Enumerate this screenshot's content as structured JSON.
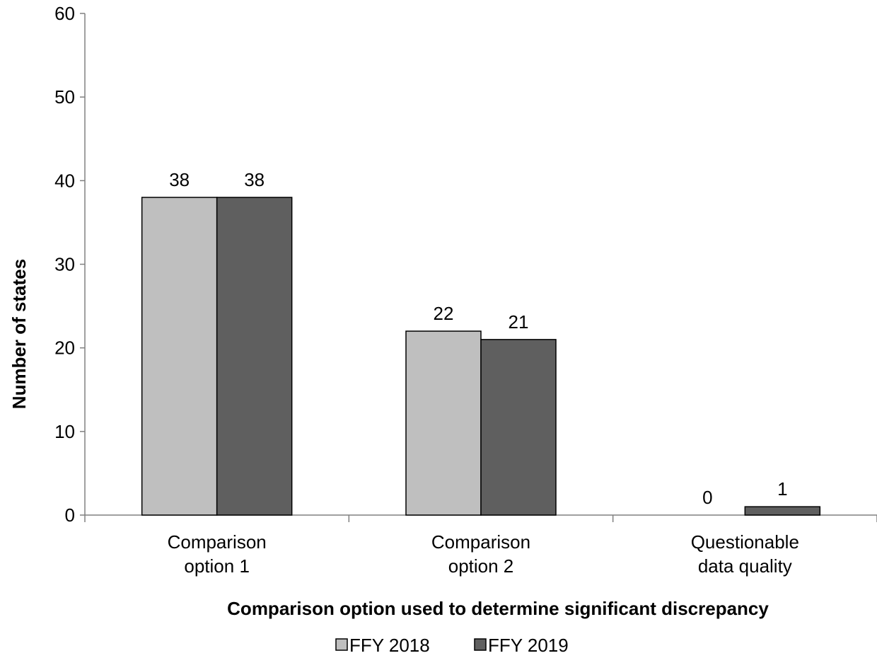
{
  "chart_data": {
    "type": "bar",
    "title": "",
    "categories": [
      [
        "Comparison",
        "option 1"
      ],
      [
        "Comparison",
        "option 2"
      ],
      [
        "Questionable",
        "data quality"
      ]
    ],
    "series": [
      {
        "name": "FFY 2018",
        "values": [
          38,
          22,
          0
        ],
        "color": "#bfbfbf"
      },
      {
        "name": "FFY 2019",
        "values": [
          38,
          21,
          1
        ],
        "color": "#5f5f5f"
      }
    ],
    "xlabel": "Comparison option used to determine significant discrepancy",
    "ylabel": "Number of states",
    "ylim": [
      0,
      60
    ],
    "yticks": [
      0,
      10,
      20,
      30,
      40,
      50,
      60
    ],
    "grid": false,
    "legend_position": "bottom"
  }
}
